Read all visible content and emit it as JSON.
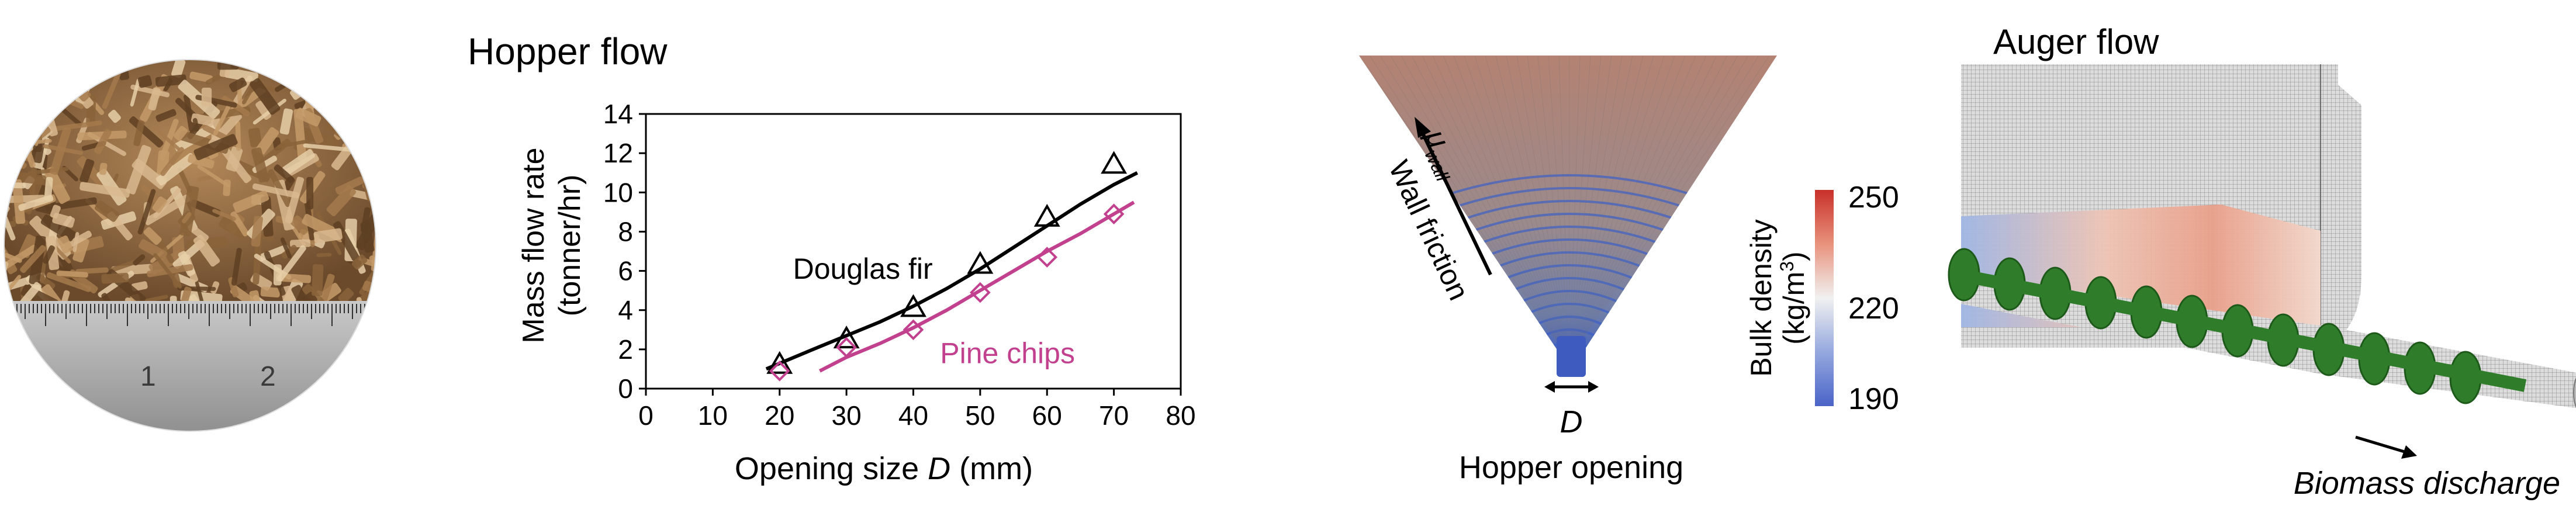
{
  "chart_data": {
    "type": "scatter",
    "title": "Hopper flow",
    "xlabel": "Opening size D (mm)",
    "xlabel_parts": {
      "prefix": "Opening size ",
      "var": "D",
      "suffix": " (mm)"
    },
    "ylabel": [
      "Mass flow rate",
      "(tonner/hr)"
    ],
    "xlim": [
      0,
      80
    ],
    "ylim": [
      0,
      14
    ],
    "xticks": [
      0,
      10,
      20,
      30,
      40,
      50,
      60,
      70,
      80
    ],
    "yticks": [
      0,
      2,
      4,
      6,
      8,
      10,
      12,
      14
    ],
    "grid": false,
    "series": [
      {
        "name": "Douglas fir",
        "color": "#000000",
        "marker": "triangle",
        "x": [
          20,
          30,
          40,
          50,
          60,
          70
        ],
        "y": [
          1.2,
          2.5,
          4.1,
          6.3,
          8.7,
          11.4
        ],
        "fit_x": [
          18,
          25,
          30,
          35,
          40,
          45,
          50,
          55,
          60,
          65,
          70,
          73.5
        ],
        "fit_y": [
          1.0,
          2.0,
          2.7,
          3.4,
          4.2,
          5.1,
          6.1,
          7.2,
          8.3,
          9.4,
          10.4,
          11.0
        ]
      },
      {
        "name": "Pine chips",
        "color": "#c2418f",
        "marker": "diamond",
        "x": [
          20,
          30,
          40,
          50,
          60,
          70
        ],
        "y": [
          0.9,
          2.1,
          3.0,
          4.9,
          6.7,
          8.9
        ],
        "fit_x": [
          26,
          30,
          35,
          40,
          45,
          50,
          55,
          60,
          65,
          70,
          73
        ],
        "fit_y": [
          0.9,
          1.6,
          2.3,
          3.1,
          4.0,
          5.0,
          6.0,
          7.0,
          7.9,
          8.9,
          9.5
        ]
      }
    ]
  },
  "hopper": {
    "wall_label": "Wall friction",
    "mu_symbol": "μ",
    "mu_subscript": "wall",
    "opening_symbol": "D",
    "caption": "Hopper opening"
  },
  "colorbar": {
    "label_prefix": "Bulk density",
    "label_units_pre": "(kg/m",
    "label_units_exp": "3",
    "label_units_post": ")",
    "ticks": [
      "250",
      "220",
      "190"
    ],
    "colors": {
      "top": "#c8302a",
      "middle": "#f1f1f1",
      "bottom": "#4a64c8"
    }
  },
  "auger": {
    "title": "Auger flow",
    "discharge_label": "Biomass discharge"
  },
  "photo": {
    "ruler_numbers": [
      "1",
      "2"
    ]
  }
}
